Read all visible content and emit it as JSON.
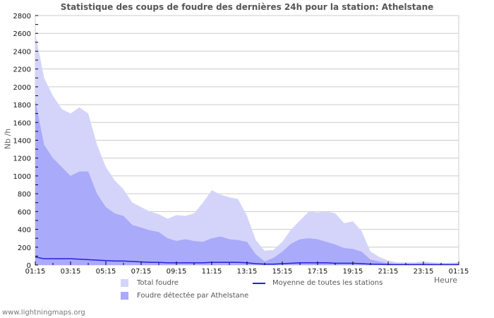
{
  "title": "Statistique des coups de foudre des dernières 24h pour la station: Athelstane",
  "footer": "www.lightningmaps.org",
  "colors": {
    "total": "#d4d4fb",
    "station": "#aaaafa",
    "average": "#2222dd",
    "grid": "#cccccc"
  },
  "legend": {
    "total": "Total foudre",
    "station": "Foudre détectée par Athelstane",
    "average": "Moyenne de toutes les stations"
  },
  "chart_data": {
    "type": "area",
    "title": "Statistique des coups de foudre des dernières 24h pour la station: Athelstane",
    "xlabel": "Heure",
    "ylabel": "Nb /h",
    "ylim": [
      0,
      2800
    ],
    "yticks": [
      0,
      200,
      400,
      600,
      800,
      1000,
      1200,
      1400,
      1600,
      1800,
      2000,
      2200,
      2400,
      2600,
      2800
    ],
    "xtick_labels": [
      "01:15",
      "03:15",
      "05:15",
      "07:15",
      "09:15",
      "11:15",
      "13:15",
      "15:15",
      "17:15",
      "19:15",
      "21:15",
      "23:15",
      "01:15"
    ],
    "grid": true,
    "legend_position": "bottom",
    "x": [
      "01:15",
      "01:45",
      "02:15",
      "02:45",
      "03:15",
      "03:45",
      "04:15",
      "04:45",
      "05:15",
      "05:45",
      "06:15",
      "06:45",
      "07:15",
      "07:45",
      "08:15",
      "08:45",
      "09:15",
      "09:45",
      "10:15",
      "10:45",
      "11:15",
      "11:45",
      "12:15",
      "12:45",
      "13:15",
      "13:45",
      "14:15",
      "14:45",
      "15:15",
      "15:45",
      "16:15",
      "16:45",
      "17:15",
      "17:45",
      "18:15",
      "18:45",
      "19:15",
      "19:45",
      "20:15",
      "20:45",
      "21:15",
      "21:45",
      "22:15",
      "22:45",
      "23:15",
      "23:45",
      "00:15",
      "00:45",
      "01:15"
    ],
    "series": [
      {
        "name": "Total foudre",
        "values": [
          2600,
          2100,
          1900,
          1750,
          1700,
          1770,
          1700,
          1350,
          1100,
          950,
          850,
          700,
          650,
          600,
          570,
          520,
          560,
          550,
          580,
          700,
          840,
          790,
          760,
          740,
          550,
          280,
          160,
          170,
          260,
          400,
          500,
          600,
          590,
          600,
          580,
          470,
          490,
          380,
          150,
          90,
          50,
          30,
          30,
          30,
          40,
          30,
          25,
          25,
          30
        ]
      },
      {
        "name": "Foudre détectée par Athelstane",
        "values": [
          1850,
          1350,
          1200,
          1100,
          1000,
          1050,
          1050,
          800,
          650,
          580,
          550,
          450,
          420,
          390,
          370,
          300,
          270,
          290,
          270,
          260,
          300,
          320,
          290,
          280,
          260,
          120,
          40,
          80,
          150,
          240,
          290,
          300,
          290,
          260,
          230,
          190,
          180,
          150,
          60,
          40,
          20,
          15,
          15,
          15,
          20,
          15,
          10,
          10,
          15
        ]
      },
      {
        "name": "Moyenne de toutes les stations",
        "values": [
          90,
          70,
          70,
          70,
          70,
          65,
          60,
          55,
          50,
          45,
          45,
          40,
          35,
          30,
          30,
          25,
          25,
          25,
          25,
          25,
          30,
          30,
          30,
          30,
          25,
          15,
          10,
          10,
          15,
          20,
          25,
          25,
          25,
          25,
          20,
          20,
          20,
          15,
          10,
          8,
          5,
          5,
          5,
          5,
          5,
          5,
          5,
          5,
          5
        ]
      }
    ]
  }
}
